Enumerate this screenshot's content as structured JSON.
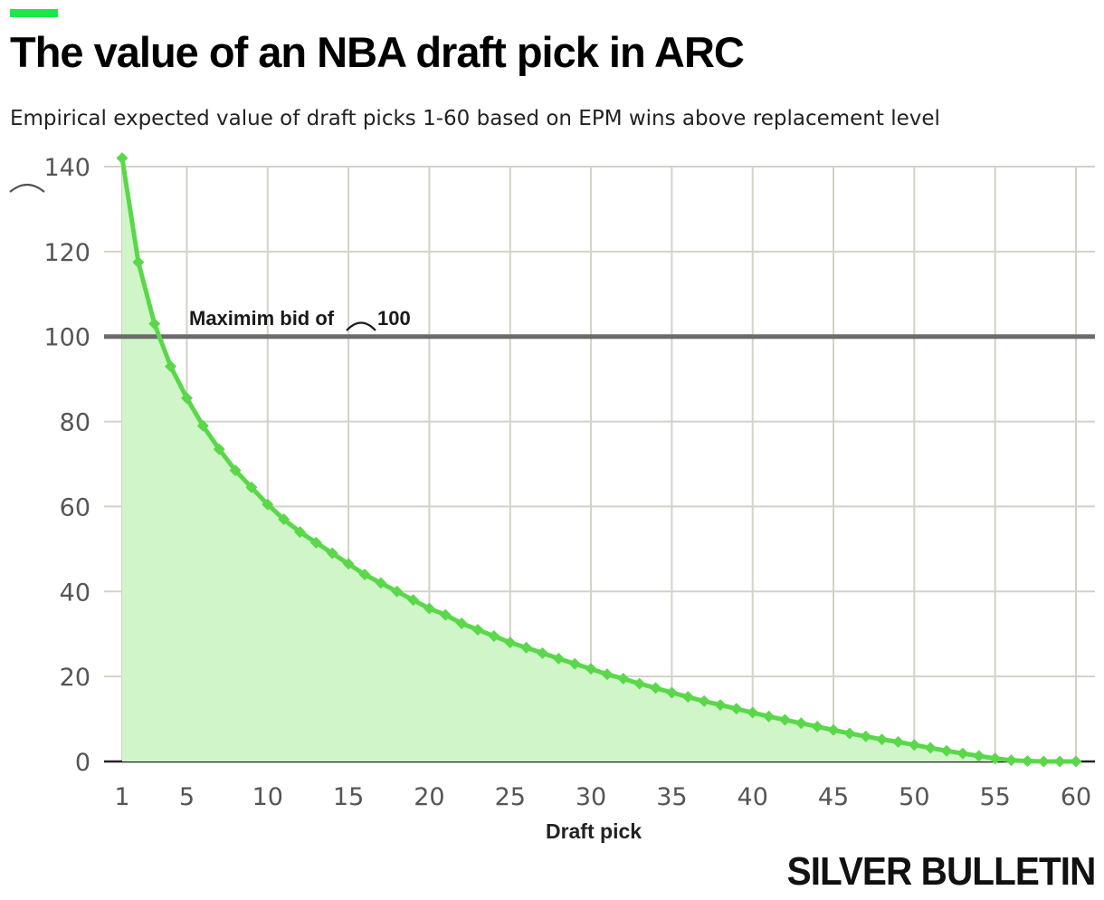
{
  "title": "The value of an NBA draft pick in ARC",
  "subtitle": "Empirical expected value of draft picks 1-60 based on EPM wins above replacement level",
  "brand": "SILVER BULLETIN",
  "colors": {
    "accent": "#1de84a",
    "line": "#5ad84a",
    "area": "#cff5c8",
    "reference_line": "#6b6b6b",
    "grid": "#d2d2c8"
  },
  "chart_data": {
    "type": "area",
    "title": "The value of an NBA draft pick in ARC",
    "subtitle": "Empirical expected value of draft picks 1-60 based on EPM wins above replacement level",
    "xlabel": "Draft pick",
    "ylabel": "",
    "xlim": [
      1,
      60
    ],
    "ylim": [
      0,
      140
    ],
    "x_ticks": [
      1,
      5,
      10,
      15,
      20,
      25,
      30,
      35,
      40,
      45,
      50,
      55,
      60
    ],
    "y_ticks": [
      0,
      20,
      40,
      60,
      80,
      100,
      120,
      140
    ],
    "y_tick_labels": [
      "0",
      "20",
      "40",
      "60",
      "80",
      "100",
      "120",
      "140"
    ],
    "grid": true,
    "reference_line": {
      "value": 100,
      "label_prefix": "Maximim bid of ",
      "label_value": "100"
    },
    "series": [
      {
        "x": [
          1,
          2,
          3,
          4,
          5,
          6,
          7,
          8,
          9,
          10,
          11,
          12,
          13,
          14,
          15,
          16,
          17,
          18,
          19,
          20,
          21,
          22,
          23,
          24,
          25,
          26,
          27,
          28,
          29,
          30,
          31,
          32,
          33,
          34,
          35,
          36,
          37,
          38,
          39,
          40,
          41,
          42,
          43,
          44,
          45,
          46,
          47,
          48,
          49,
          50,
          51,
          52,
          53,
          54,
          55,
          56,
          57,
          58,
          59,
          60
        ],
        "values": [
          142,
          117.5,
          103,
          93,
          85.5,
          79,
          73.5,
          68.5,
          64.5,
          60.5,
          57,
          54,
          51.5,
          49,
          46.5,
          44,
          42,
          40,
          38,
          36,
          34.5,
          32.5,
          31,
          29.5,
          28,
          26.8,
          25.5,
          24.2,
          23,
          21.8,
          20.5,
          19.5,
          18.3,
          17.3,
          16.2,
          15.2,
          14.2,
          13.3,
          12.4,
          11.5,
          10.6,
          9.8,
          9,
          8.2,
          7.4,
          6.6,
          5.9,
          5.2,
          4.6,
          3.9,
          3.2,
          2.5,
          1.9,
          1.3,
          0.7,
          0.3,
          0.1,
          0,
          0,
          0
        ]
      }
    ]
  }
}
